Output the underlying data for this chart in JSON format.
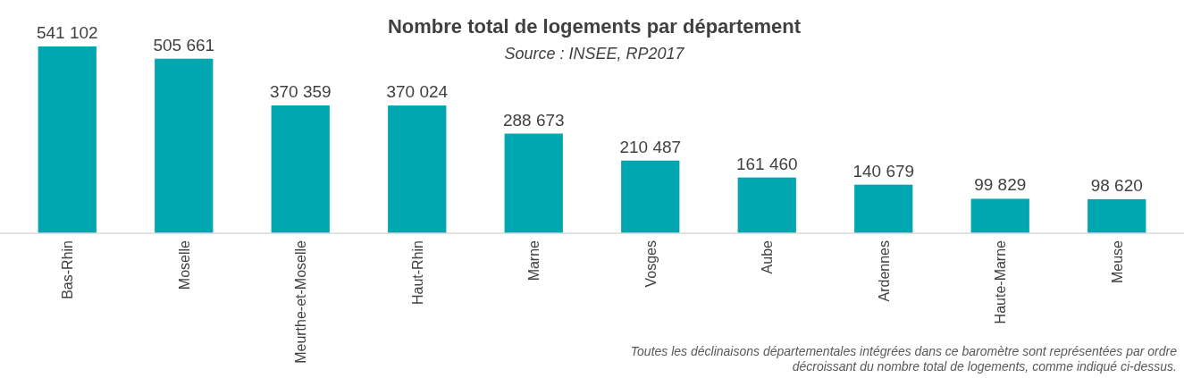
{
  "chart_data": {
    "type": "bar",
    "title": "Nombre total de logements par département",
    "subtitle": "Source : INSEE, RP2017",
    "categories": [
      "Bas-Rhin",
      "Moselle",
      "Meurthe-et-Moselle",
      "Haut-Rhin",
      "Marne",
      "Vosges",
      "Aube",
      "Ardennes",
      "Haute-Marne",
      "Meuse"
    ],
    "values": [
      541102,
      505661,
      370359,
      370024,
      288673,
      210487,
      161460,
      140679,
      99829,
      98620
    ],
    "value_labels": [
      "541 102",
      "505 661",
      "370 359",
      "370 024",
      "288 673",
      "210 487",
      "161 460",
      "140 679",
      "99 829",
      "98 620"
    ],
    "color": "#00a6b0",
    "annotations": [
      "Toutes les déclinaisons départementales intégrées dans ce baromètre sont représentées par ordre décroissant du nombre total de logements, comme indiqué ci-dessus."
    ],
    "orientation": "vertical"
  }
}
